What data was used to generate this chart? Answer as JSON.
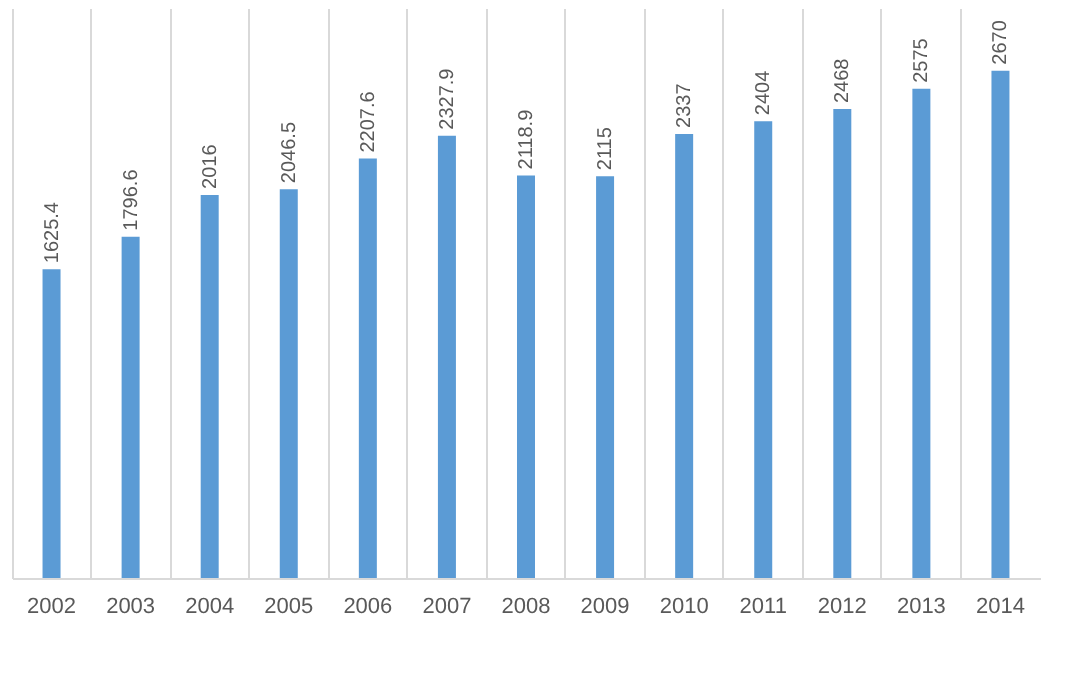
{
  "chart_data": {
    "type": "bar",
    "categories": [
      "2002",
      "2003",
      "2004",
      "2005",
      "2006",
      "2007",
      "2008",
      "2009",
      "2010",
      "2011",
      "2012",
      "2013",
      "2014"
    ],
    "values": [
      1625.4,
      1796.6,
      2016,
      2046.5,
      2207.6,
      2327.9,
      2118.9,
      2115,
      2337,
      2404,
      2468,
      2575,
      2670
    ],
    "color": "#5b9bd5",
    "ylim": [
      0,
      3000
    ],
    "grid": "x",
    "tick_labels": "x",
    "data_labels": true
  }
}
